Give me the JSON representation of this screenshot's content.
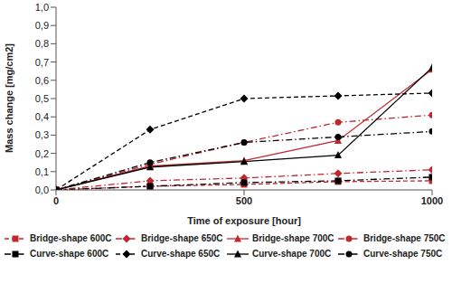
{
  "chart_data": {
    "type": "line",
    "x_label": "Time of exposure [hour]",
    "y_label": "Mass change [mg/cm2]",
    "x": [
      0,
      250,
      500,
      750,
      1000
    ],
    "xlim": [
      0,
      1000
    ],
    "xticks": [
      0,
      500,
      1000
    ],
    "ylim": [
      0,
      1
    ],
    "yticks": [
      {
        "value": 0,
        "label": "0,0"
      },
      {
        "value": 0.1,
        "label": "0,1"
      },
      {
        "value": 0.2,
        "label": "0,2"
      },
      {
        "value": 0.3,
        "label": "0,3"
      },
      {
        "value": 0.4,
        "label": "0,4"
      },
      {
        "value": 0.5,
        "label": "0,5"
      },
      {
        "value": 0.6,
        "label": "0,6"
      },
      {
        "value": 0.7,
        "label": "0,7"
      },
      {
        "value": 0.8,
        "label": "0,8"
      },
      {
        "value": 0.9,
        "label": "0,9"
      },
      {
        "value": 1,
        "label": "1,0"
      }
    ],
    "grid": false,
    "legend": "bottom",
    "series": [
      {
        "name": "Bridge-shape 600C",
        "color": "#c0282d",
        "marker": "square",
        "line_style": "dashed",
        "values": [
          0,
          0.02,
          0.03,
          0.045,
          0.05
        ]
      },
      {
        "name": "Bridge-shape 650C",
        "color": "#c0282d",
        "marker": "diamond",
        "line_style": "dashdot",
        "values": [
          0,
          0.05,
          0.065,
          0.09,
          0.11
        ]
      },
      {
        "name": "Bridge-shape 700C",
        "color": "#c0282d",
        "marker": "triangle",
        "line_style": "solid",
        "values": [
          0,
          0.13,
          0.16,
          0.27,
          0.66
        ]
      },
      {
        "name": "Bridge-shape 750C",
        "color": "#c0282d",
        "marker": "circle",
        "line_style": "dashdot",
        "values": [
          0,
          0.14,
          0.26,
          0.37,
          0.41
        ]
      },
      {
        "name": "Curve-shape 600C",
        "color": "#000000",
        "marker": "square",
        "line_style": "dashdot",
        "values": [
          0,
          0.02,
          0.04,
          0.05,
          0.07
        ]
      },
      {
        "name": "Curve-shape 650C",
        "color": "#000000",
        "marker": "diamond",
        "line_style": "dashed",
        "values": [
          0,
          0.33,
          0.5,
          0.515,
          0.53
        ]
      },
      {
        "name": "Curve-shape 700C",
        "color": "#000000",
        "marker": "triangle",
        "line_style": "solid",
        "values": [
          0,
          0.125,
          0.155,
          0.19,
          0.67
        ]
      },
      {
        "name": "Curve-shape 750C",
        "color": "#000000",
        "marker": "circle",
        "line_style": "dashdot",
        "values": [
          0,
          0.15,
          0.26,
          0.29,
          0.32
        ]
      }
    ]
  }
}
